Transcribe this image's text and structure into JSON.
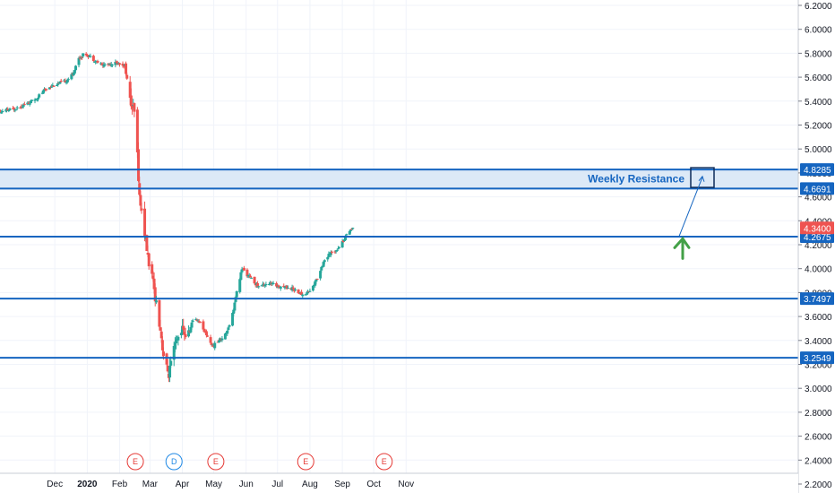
{
  "colors": {
    "up": "#26a69a",
    "down": "#ef5350",
    "level_line": "#1565c0",
    "zone_fill": "#dce9f7",
    "current_price": "#ef5350",
    "arrow_green": "#43a047",
    "earnings": "#e53935",
    "dividend": "#1e88e5",
    "grid": "#f0f3fa"
  },
  "chart_data": {
    "type": "candlestick",
    "y_axis_side": "right",
    "ylim": [
      2.2,
      6.25
    ],
    "grid": true,
    "y_ticks": [
      "2.2000",
      "2.4000",
      "2.6000",
      "2.8000",
      "3.0000",
      "3.2000",
      "3.4000",
      "3.6000",
      "3.8000",
      "4.0000",
      "4.2000",
      "4.4000",
      "4.6000",
      "4.8000",
      "5.0000",
      "5.2000",
      "5.4000",
      "5.6000",
      "5.8000",
      "6.0000",
      "6.2000"
    ],
    "x_ticks": [
      {
        "label": "Dec",
        "day": 61
      },
      {
        "label": "2020",
        "day": 92,
        "bold": true
      },
      {
        "label": "Feb",
        "day": 123
      },
      {
        "label": "Mar",
        "day": 152
      },
      {
        "label": "Apr",
        "day": 183
      },
      {
        "label": "May",
        "day": 213
      },
      {
        "label": "Jun",
        "day": 244
      },
      {
        "label": "Jul",
        "day": 274
      },
      {
        "label": "Aug",
        "day": 305
      },
      {
        "label": "Sep",
        "day": 336
      },
      {
        "label": "Oct",
        "day": 366
      },
      {
        "label": "Nov",
        "day": 397
      }
    ],
    "resistance_zone": {
      "low": 4.6691,
      "high": 4.8285,
      "label": "Weekly Resistance"
    },
    "levels": [
      4.8285,
      4.6691,
      4.2675,
      3.7497,
      3.2549
    ],
    "level_labels": [
      "4.8285",
      "4.6691",
      "4.2675",
      "3.7497",
      "3.2549"
    ],
    "current_price": 4.34,
    "current_price_label": "4.3400",
    "events": [
      {
        "type": "E",
        "day": 138
      },
      {
        "type": "D",
        "day": 175
      },
      {
        "type": "E",
        "day": 215
      },
      {
        "type": "E",
        "day": 301
      },
      {
        "type": "E",
        "day": 376
      }
    ],
    "anchor_points": [
      [
        0,
        5.29
      ],
      [
        20,
        5.33
      ],
      [
        40,
        5.4
      ],
      [
        55,
        5.52
      ],
      [
        70,
        5.56
      ],
      [
        78,
        5.62
      ],
      [
        83,
        5.75
      ],
      [
        90,
        5.8
      ],
      [
        98,
        5.75
      ],
      [
        106,
        5.7
      ],
      [
        118,
        5.72
      ],
      [
        128,
        5.7
      ],
      [
        133,
        5.4
      ],
      [
        137,
        5.3
      ],
      [
        140,
        4.95
      ],
      [
        142,
        4.6
      ],
      [
        145,
        4.42
      ],
      [
        150,
        4.1
      ],
      [
        154,
        3.92
      ],
      [
        158,
        3.72
      ],
      [
        162,
        3.5
      ],
      [
        166,
        3.2
      ],
      [
        170,
        3.12
      ],
      [
        176,
        3.35
      ],
      [
        182,
        3.5
      ],
      [
        188,
        3.42
      ],
      [
        194,
        3.6
      ],
      [
        200,
        3.55
      ],
      [
        206,
        3.45
      ],
      [
        212,
        3.35
      ],
      [
        218,
        3.4
      ],
      [
        224,
        3.45
      ],
      [
        230,
        3.58
      ],
      [
        235,
        3.8
      ],
      [
        240,
        4.0
      ],
      [
        248,
        3.92
      ],
      [
        256,
        3.85
      ],
      [
        264,
        3.88
      ],
      [
        272,
        3.86
      ],
      [
        280,
        3.85
      ],
      [
        290,
        3.83
      ],
      [
        298,
        3.78
      ],
      [
        306,
        3.82
      ],
      [
        312,
        3.92
      ],
      [
        318,
        4.06
      ],
      [
        324,
        4.12
      ],
      [
        330,
        4.16
      ],
      [
        336,
        4.22
      ],
      [
        342,
        4.32
      ],
      [
        346,
        4.34
      ]
    ],
    "annotations": [
      "green-up-arrow",
      "projection-arrow",
      "target-box"
    ]
  }
}
